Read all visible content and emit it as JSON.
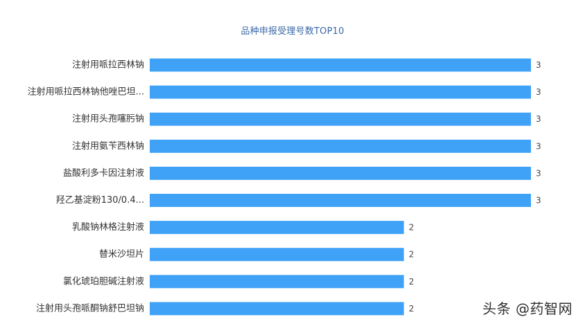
{
  "chart_data": {
    "type": "bar",
    "orientation": "horizontal",
    "title": "品种申报受理号数TOP10",
    "categories": [
      "注射用哌拉西林钠",
      "注射用哌拉西林钠他唑巴坦...",
      "注射用头孢噻肟钠",
      "注射用氨苄西林钠",
      "盐酸利多卡因注射液",
      "羟乙基淀粉130/0.4...",
      "乳酸钠林格注射液",
      "替米沙坦片",
      "氯化琥珀胆碱注射液",
      "注射用头孢哌酮钠舒巴坦钠"
    ],
    "values": [
      3,
      3,
      3,
      3,
      3,
      3,
      2,
      2,
      2,
      2
    ],
    "xlim": [
      0,
      3
    ],
    "grid": false,
    "bar_color": "#3fa2f7",
    "title_color": "#3a68a8"
  },
  "watermark": "头条 @药智网"
}
